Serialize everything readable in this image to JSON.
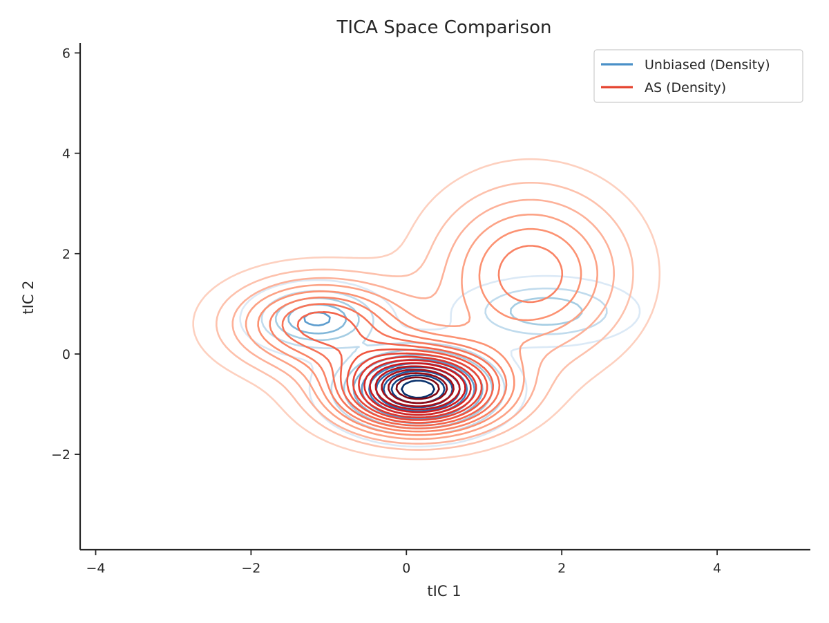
{
  "chart_data": {
    "type": "contour",
    "title": "TICA Space Comparison",
    "xlabel": "tIC 1",
    "ylabel": "tIC 2",
    "xlim": [
      -4.2,
      5.2
    ],
    "ylim": [
      -3.9,
      6.2
    ],
    "xticks": [
      -4,
      -2,
      0,
      2,
      4
    ],
    "yticks": [
      -2,
      0,
      2,
      4,
      6
    ],
    "grid": false,
    "legend_position": "top-right",
    "colors": {
      "unbiased": "#4a90c8",
      "as": "#e5432f"
    },
    "series": [
      {
        "name": "Unbiased (Density)",
        "colormap": "Blues",
        "levels": 10,
        "modes": [
          {
            "x": 0.15,
            "y": -0.7,
            "sx": 0.55,
            "sy": 0.45,
            "weight": 1.0
          },
          {
            "x": -1.15,
            "y": 0.7,
            "sx": 0.45,
            "sy": 0.35,
            "weight": 0.45
          },
          {
            "x": 1.8,
            "y": 0.85,
            "sx": 0.6,
            "sy": 0.35,
            "weight": 0.3
          }
        ]
      },
      {
        "name": "AS (Density)",
        "colormap": "Reds",
        "levels": 17,
        "modes": [
          {
            "x": 0.15,
            "y": -0.7,
            "sx": 0.7,
            "sy": 0.55,
            "weight": 1.0
          },
          {
            "x": -1.1,
            "y": 0.6,
            "sx": 0.75,
            "sy": 0.6,
            "weight": 0.45
          },
          {
            "x": 1.6,
            "y": 1.6,
            "sx": 0.8,
            "sy": 1.1,
            "weight": 0.35
          }
        ]
      }
    ]
  }
}
